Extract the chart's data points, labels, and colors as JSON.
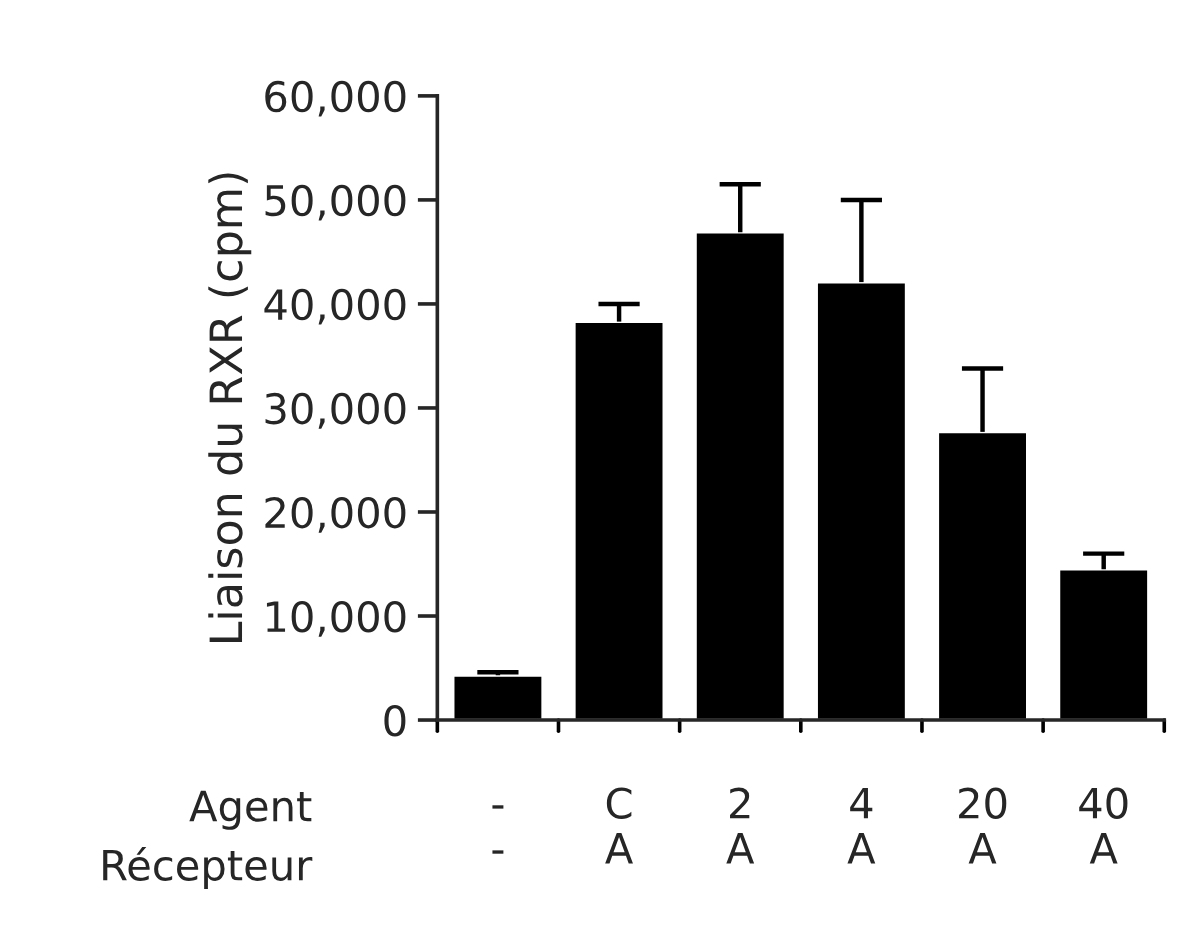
{
  "chart_data": {
    "type": "bar",
    "ylabel": "Liaison du RXR (cpm)",
    "categories": [
      "-\n-",
      "C\nA",
      "2\nA",
      "4\nA",
      "20\nA",
      "40\nA"
    ],
    "values": [
      4300,
      38300,
      46900,
      42100,
      27700,
      14500
    ],
    "errors": [
      [
        4300,
        4600
      ],
      [
        38300,
        40000
      ],
      [
        46900,
        51500
      ],
      [
        42100,
        50000
      ],
      [
        27700,
        33800
      ],
      [
        14500,
        16000
      ]
    ],
    "color": "#000000",
    "ylim": [
      0,
      60000
    ],
    "yticks": [
      {
        "value": 0,
        "label": "0"
      },
      {
        "value": 10000,
        "label": "10,000"
      },
      {
        "value": 20000,
        "label": "20,000"
      },
      {
        "value": 30000,
        "label": "30,000"
      },
      {
        "value": 40000,
        "label": "40,000"
      },
      {
        "value": 50000,
        "label": "50,000"
      },
      {
        "value": 60000,
        "label": "60,000"
      }
    ],
    "annotations": [
      "Agent",
      "Récepteur"
    ],
    "grid": false,
    "legend": false
  }
}
